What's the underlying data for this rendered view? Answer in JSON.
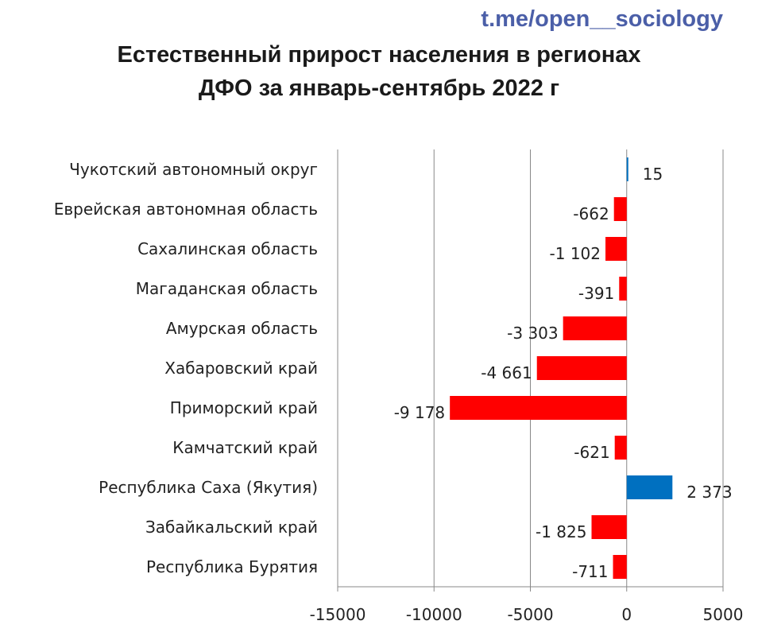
{
  "watermark": "t.me/open__sociology",
  "chart_data": {
    "type": "bar",
    "orientation": "horizontal",
    "title_line1": "Естественный прирост населения в регионах",
    "title_line2": "ДФО за январь-сентябрь 2022 г",
    "categories": [
      "Чукотский автономный округ",
      "Еврейская автономная область",
      "Сахалинская область",
      "Магаданская область",
      "Амурская область",
      "Хабаровский край",
      "Приморский край",
      "Камчатский край",
      "Республика Саха (Якутия)",
      "Забайкальский край",
      "Республика Бурятия"
    ],
    "values": [
      15,
      -662,
      -1102,
      -391,
      -3303,
      -4661,
      -9178,
      -621,
      2373,
      -1825,
      -711
    ],
    "value_labels": [
      "15",
      "-662",
      "-1 102",
      "-391",
      "-3 303",
      "-4 661",
      "-9 178",
      "-621",
      "2 373",
      "-1 825",
      "-711"
    ],
    "xlim": [
      -15000,
      5000
    ],
    "xticks": [
      -15000,
      -10000,
      -5000,
      0,
      5000
    ],
    "xtick_labels": [
      "-15000",
      "-10000",
      "-5000",
      "0",
      "5000"
    ],
    "grid": true,
    "colors": {
      "negative": "#ff0000",
      "positive": "#0070c0",
      "grid": "#888888"
    }
  }
}
